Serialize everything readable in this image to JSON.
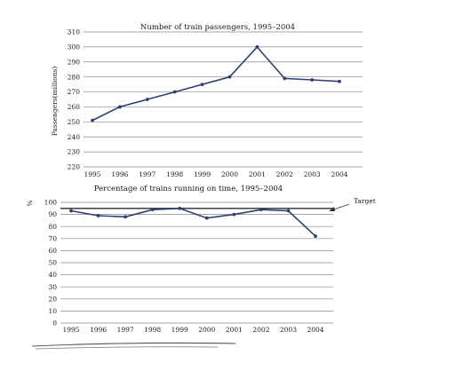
{
  "chart_data": [
    {
      "type": "line",
      "title": "Number of train passengers, 1995–2004",
      "xlabel": "",
      "ylabel": "Passengers(millions)",
      "categories": [
        "1995",
        "1996",
        "1997",
        "1998",
        "1999",
        "2000",
        "2001",
        "2002",
        "2003",
        "2004"
      ],
      "values": [
        251,
        260,
        265,
        270,
        275,
        280,
        300,
        279,
        278,
        277
      ],
      "ylim": [
        220,
        310
      ],
      "yticks": [
        "220",
        "230",
        "240",
        "250",
        "260",
        "270",
        "280",
        "290",
        "300",
        "310"
      ],
      "grid": true,
      "line_color": "#2d3f73",
      "grid_color": "#8a8a8a"
    },
    {
      "type": "line",
      "title": "Percentage of trains running on time, 1995–2004",
      "xlabel": "",
      "ylabel": "%",
      "categories": [
        "1995",
        "1996",
        "1997",
        "1998",
        "1999",
        "2000",
        "2001",
        "2002",
        "2003",
        "2004"
      ],
      "values": [
        93,
        89,
        88,
        94,
        95,
        87,
        90,
        94,
        93,
        72
      ],
      "ylim": [
        0,
        100
      ],
      "yticks": [
        "0",
        "10",
        "20",
        "30",
        "40",
        "50",
        "60",
        "70",
        "80",
        "90",
        "100"
      ],
      "target": 95,
      "target_label": "Target",
      "grid": true,
      "line_color": "#2d3f73",
      "grid_color": "#8a8a8a"
    }
  ]
}
